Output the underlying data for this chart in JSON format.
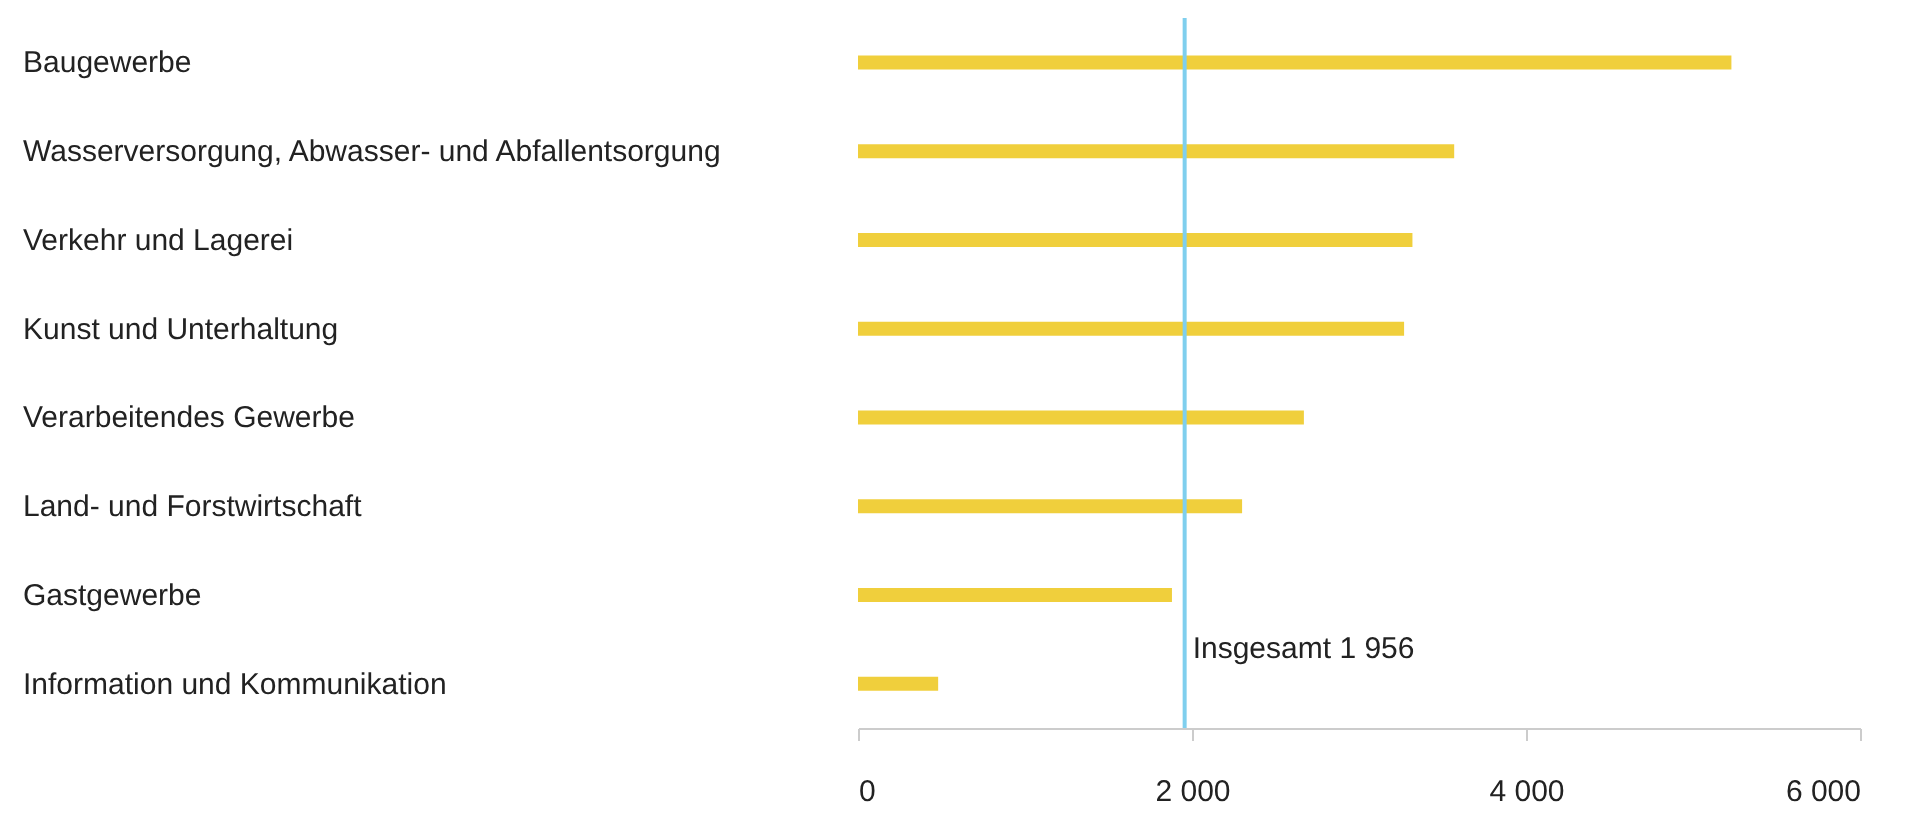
{
  "chart_data": {
    "type": "bar",
    "orientation": "horizontal",
    "categories": [
      "Baugewerbe",
      "Wasserversorgung, Abwasser- und Abfallentsorgung",
      "Verkehr und Lagerei",
      "Kunst und Unterhaltung",
      "Verarbeitendes Gewerbe",
      "Land- und Forstwirtschaft",
      "Gastgewerbe",
      "Information und Kommunikation"
    ],
    "values": [
      5230,
      3570,
      3320,
      3270,
      2670,
      2300,
      1880,
      480
    ],
    "color": "#f0cf3c",
    "xlim": [
      0,
      6000
    ],
    "xticks": [
      0,
      {
        "value": 2000,
        "label": "2 000"
      },
      {
        "value": 4000,
        "label": "4 000"
      },
      {
        "value": 6000,
        "label": "6 000"
      }
    ],
    "ref_lines": [
      {
        "axis": "x",
        "value": 1956,
        "label": "Insgesamt  1 956",
        "color": "#7fcfee"
      }
    ],
    "grid": false
  }
}
